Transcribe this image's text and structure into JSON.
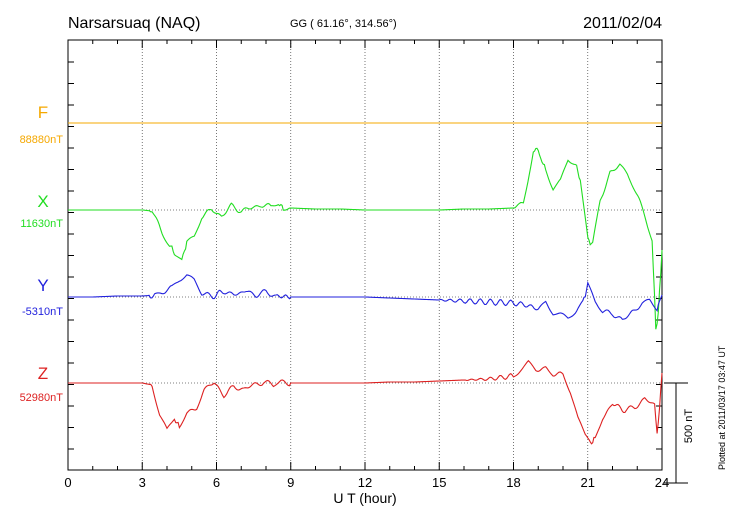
{
  "chart_data": {
    "type": "line",
    "title": "Narsarsuaq (NAQ)",
    "subtitle": "GG ( 61.16°, 314.56°)",
    "date": "2011/02/04",
    "xlabel": "U T (hour)",
    "xlim": [
      0,
      24
    ],
    "xticks": [
      "0",
      "3",
      "6",
      "9",
      "12",
      "15",
      "18",
      "21",
      "24"
    ],
    "scale_bar_label": "500 nT",
    "scale_bar_value_nT": 500,
    "plotted_note": "Plotted at 2011/03/17 03:47 UT",
    "series": [
      {
        "name": "F",
        "baseline_label": "88880nT",
        "baseline_nT": 88880,
        "color": "#f5a800",
        "points": [
          [
            0,
            0
          ],
          [
            24,
            0
          ]
        ]
      },
      {
        "name": "X",
        "baseline_label": "11630nT",
        "baseline_nT": 11630,
        "color": "#22dd22",
        "points": [
          [
            0,
            0
          ],
          [
            1,
            0
          ],
          [
            2,
            0
          ],
          [
            3,
            0
          ],
          [
            3.4,
            -5
          ],
          [
            3.8,
            -110
          ],
          [
            4.1,
            -175
          ],
          [
            4.3,
            -210
          ],
          [
            4.6,
            -250
          ],
          [
            4.8,
            -160
          ],
          [
            5.1,
            -130
          ],
          [
            5.4,
            -30
          ],
          [
            5.8,
            0
          ],
          [
            6.2,
            -30
          ],
          [
            6.6,
            20
          ],
          [
            7.0,
            -5
          ],
          [
            7.4,
            10
          ],
          [
            7.8,
            25
          ],
          [
            8.2,
            15
          ],
          [
            8.5,
            30
          ],
          [
            8.7,
            10
          ],
          [
            9.0,
            10
          ],
          [
            10,
            5
          ],
          [
            11,
            5
          ],
          [
            12,
            0
          ],
          [
            13,
            0
          ],
          [
            14,
            0
          ],
          [
            15,
            0
          ],
          [
            16,
            5
          ],
          [
            17,
            5
          ],
          [
            18,
            10
          ],
          [
            18.4,
            40
          ],
          [
            18.7,
            230
          ],
          [
            18.9,
            320
          ],
          [
            19.1,
            260
          ],
          [
            19.3,
            200
          ],
          [
            19.6,
            100
          ],
          [
            19.9,
            140
          ],
          [
            20.2,
            250
          ],
          [
            20.5,
            230
          ],
          [
            20.7,
            150
          ],
          [
            21.0,
            -150
          ],
          [
            21.2,
            -170
          ],
          [
            21.5,
            40
          ],
          [
            21.9,
            190
          ],
          [
            22.3,
            220
          ],
          [
            22.6,
            170
          ],
          [
            22.9,
            100
          ],
          [
            23.3,
            -20
          ],
          [
            23.6,
            -150
          ],
          [
            23.75,
            -590
          ],
          [
            23.85,
            -520
          ],
          [
            24.0,
            -200
          ]
        ]
      },
      {
        "name": "Y",
        "baseline_label": "-5310nT",
        "baseline_nT": -5310,
        "color": "#2222dd",
        "points": [
          [
            0,
            0
          ],
          [
            1,
            0
          ],
          [
            2,
            5
          ],
          [
            3,
            5
          ],
          [
            3.5,
            10
          ],
          [
            3.8,
            20
          ],
          [
            4.2,
            45
          ],
          [
            4.5,
            80
          ],
          [
            4.8,
            105
          ],
          [
            5.1,
            80
          ],
          [
            5.4,
            20
          ],
          [
            5.8,
            0
          ],
          [
            6.3,
            30
          ],
          [
            6.7,
            10
          ],
          [
            7.2,
            30
          ],
          [
            7.6,
            10
          ],
          [
            8.0,
            25
          ],
          [
            8.4,
            5
          ],
          [
            9,
            0
          ],
          [
            10,
            0
          ],
          [
            11,
            0
          ],
          [
            12,
            0
          ],
          [
            13,
            -5
          ],
          [
            14,
            -10
          ],
          [
            15,
            -15
          ],
          [
            16,
            -20
          ],
          [
            17,
            -25
          ],
          [
            18,
            -30
          ],
          [
            18.5,
            -40
          ],
          [
            19,
            -60
          ],
          [
            19.3,
            -20
          ],
          [
            19.6,
            -80
          ],
          [
            19.9,
            -90
          ],
          [
            20.2,
            -110
          ],
          [
            20.5,
            -80
          ],
          [
            20.8,
            -30
          ],
          [
            21.0,
            60
          ],
          [
            21.3,
            -30
          ],
          [
            21.6,
            -75
          ],
          [
            22.0,
            -80
          ],
          [
            22.4,
            -120
          ],
          [
            22.8,
            -70
          ],
          [
            23.2,
            -40
          ],
          [
            23.5,
            -20
          ],
          [
            23.8,
            -60
          ],
          [
            24.0,
            10
          ]
        ]
      },
      {
        "name": "Z",
        "baseline_label": "52980nT",
        "baseline_nT": 52980,
        "color": "#dd2222",
        "points": [
          [
            0,
            0
          ],
          [
            1,
            0
          ],
          [
            2,
            0
          ],
          [
            3,
            0
          ],
          [
            3.4,
            -10
          ],
          [
            3.7,
            -160
          ],
          [
            4.0,
            -240
          ],
          [
            4.3,
            -180
          ],
          [
            4.5,
            -220
          ],
          [
            4.8,
            -150
          ],
          [
            5.2,
            -120
          ],
          [
            5.5,
            -30
          ],
          [
            5.9,
            0
          ],
          [
            6.3,
            -60
          ],
          [
            6.7,
            -20
          ],
          [
            7.1,
            -30
          ],
          [
            7.5,
            -10
          ],
          [
            7.9,
            5
          ],
          [
            8.3,
            -10
          ],
          [
            8.6,
            5
          ],
          [
            9,
            0
          ],
          [
            10,
            0
          ],
          [
            11,
            0
          ],
          [
            12,
            0
          ],
          [
            13,
            5
          ],
          [
            14,
            5
          ],
          [
            15,
            10
          ],
          [
            16,
            15
          ],
          [
            17,
            20
          ],
          [
            18,
            35
          ],
          [
            18.3,
            70
          ],
          [
            18.6,
            100
          ],
          [
            18.9,
            60
          ],
          [
            19.3,
            80
          ],
          [
            19.6,
            50
          ],
          [
            20.0,
            40
          ],
          [
            20.3,
            -50
          ],
          [
            20.6,
            -180
          ],
          [
            20.9,
            -250
          ],
          [
            21.1,
            -300
          ],
          [
            21.3,
            -280
          ],
          [
            21.6,
            -180
          ],
          [
            22.0,
            -100
          ],
          [
            22.5,
            -140
          ],
          [
            22.9,
            -120
          ],
          [
            23.3,
            -80
          ],
          [
            23.7,
            -110
          ],
          [
            23.8,
            -250
          ],
          [
            23.9,
            -130
          ],
          [
            24.0,
            50
          ]
        ]
      }
    ]
  }
}
